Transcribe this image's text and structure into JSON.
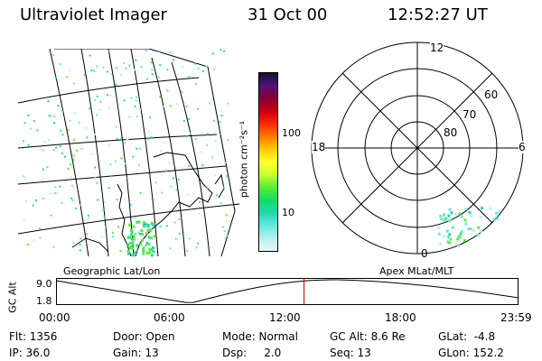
{
  "header": {
    "instrument": "Ultraviolet Imager",
    "date": "31 Oct 00",
    "time": "12:52:27 UT"
  },
  "geo_panel": {
    "label": "Geographic Lat/Lon"
  },
  "colorbar": {
    "unit_label": "photon cm⁻²s⁻¹",
    "ticks": [
      "100",
      "10"
    ],
    "colors": [
      "#111133",
      "#55117a",
      "#8a0030",
      "#c80010",
      "#ff2a00",
      "#ff7a00",
      "#ffcc00",
      "#ffff33",
      "#c8ff33",
      "#55ee33",
      "#11dd66",
      "#22d8b0",
      "#66e6e0",
      "#b8f0f0",
      "#e8f8f8"
    ]
  },
  "polar_panel": {
    "label": "Apex MLat/MLT",
    "mlt_labels": {
      "top": "12",
      "left": "18",
      "right": "6",
      "bottom": "0"
    },
    "lat_labels": [
      "60",
      "70",
      "80"
    ]
  },
  "timeline": {
    "axis_title": "GC Alt",
    "y_ticks": [
      "9.0",
      "1.8"
    ],
    "x_ticks": [
      "00:00",
      "06:00",
      "12:00",
      "18:00",
      "23:59"
    ],
    "current_time_hours": 12.87
  },
  "status": {
    "flt": "Flt: 1356",
    "ip": "IP: 36.0",
    "door": "Door: Open",
    "gain": "Gain: 13",
    "mode": "Mode: Normal",
    "dsp": "Dsp:     2.0",
    "gcalt": "GC Alt: 8.6 Re",
    "seq": "Seq: 13",
    "glat": "GLat:  -4.8",
    "glon": "GLon: 152.2"
  }
}
